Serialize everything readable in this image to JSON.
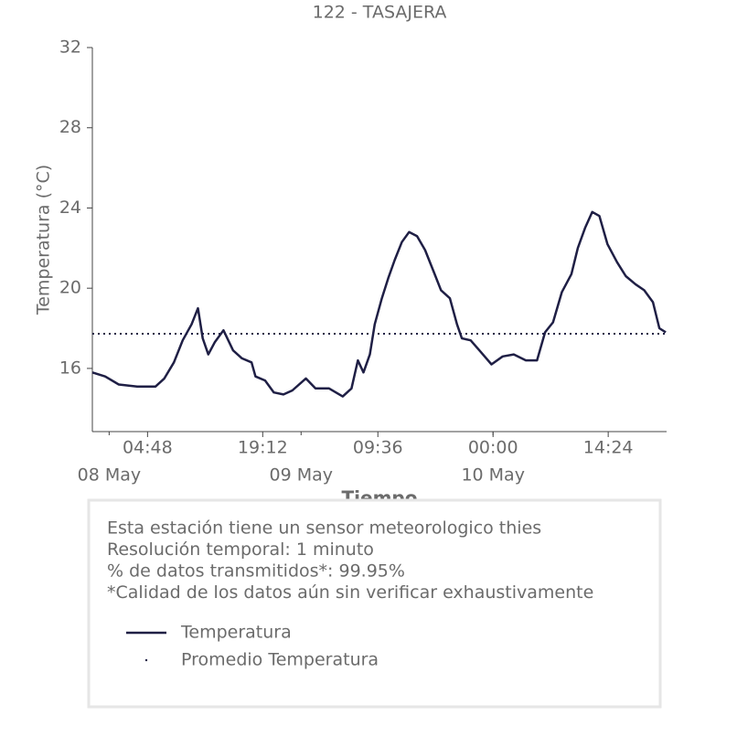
{
  "chart_data": {
    "type": "line",
    "title": "122 - TASAJERA",
    "xlabel": "Tiempo",
    "ylabel": "Temperatura (°C)",
    "x": [
      -2.1,
      -0.5,
      1.2,
      3.5,
      5.8,
      6.9,
      8.1,
      9.2,
      10.3,
      11.1,
      11.7,
      12.4,
      13.2,
      14.3,
      15.5,
      16.6,
      17.8,
      18.3,
      19.5,
      20.6,
      21.8,
      22.9,
      24.6,
      25.8,
      27.5,
      29.2,
      30.3,
      31.1,
      31.8,
      32.6,
      33.2,
      34.1,
      34.9,
      35.7,
      36.6,
      37.5,
      38.5,
      39.5,
      40.6,
      41.5,
      42.6,
      43.5,
      44.1,
      45.2,
      46.3,
      47.8,
      49.2,
      50.6,
      52.1,
      53.5,
      54.5,
      55.5,
      56.6,
      57.8,
      58.6,
      59.5,
      60.4,
      61.3,
      62.3,
      63.5,
      64.6,
      65.8,
      66.9,
      68.0,
      68.8,
      69.6
    ],
    "series": [
      {
        "name": "Temperatura",
        "color": "#1f1f45",
        "values": [
          15.8,
          15.6,
          15.2,
          15.1,
          15.1,
          15.5,
          16.3,
          17.4,
          18.2,
          19.0,
          17.5,
          16.7,
          17.3,
          17.9,
          16.9,
          16.5,
          16.3,
          15.6,
          15.4,
          14.8,
          14.7,
          14.9,
          15.5,
          15.0,
          15.0,
          14.6,
          15.0,
          16.4,
          15.8,
          16.7,
          18.2,
          19.5,
          20.5,
          21.4,
          22.3,
          22.8,
          22.6,
          21.9,
          20.8,
          19.9,
          19.5,
          18.2,
          17.5,
          17.4,
          16.9,
          16.2,
          16.6,
          16.7,
          16.4,
          16.4,
          17.8,
          18.3,
          19.8,
          20.7,
          22.0,
          23.0,
          23.8,
          23.6,
          22.2,
          21.3,
          20.6,
          20.2,
          19.9,
          19.3,
          18.0,
          17.8
        ]
      }
    ],
    "mean_line": {
      "name": "Promedio Temperatura",
      "value": 17.73,
      "color": "#1f1f45"
    },
    "xlim": [
      -2.1,
      69.7
    ],
    "xticks": [
      {
        "value": 4.8,
        "label": "04:48"
      },
      {
        "value": 19.2,
        "label": "19:12"
      },
      {
        "value": 33.6,
        "label": "09:36"
      },
      {
        "value": 48,
        "label": "00:00"
      },
      {
        "value": 62.4,
        "label": "14:24"
      }
    ],
    "date_ticks": [
      {
        "value": 0,
        "label": "08 May"
      },
      {
        "value": 24,
        "label": "09 May"
      },
      {
        "value": 48,
        "label": "10 May"
      }
    ],
    "ylim": [
      12.85,
      32
    ],
    "yticks": [
      16,
      20,
      24,
      28,
      32
    ],
    "notes": [
      "Esta estación tiene un sensor meteorologico thies",
      "Resolución temporal: 1 minuto",
      "% de datos transmitidos*: 99.95%",
      "*Calidad de los datos aún sin verificar exhaustivamente"
    ]
  }
}
